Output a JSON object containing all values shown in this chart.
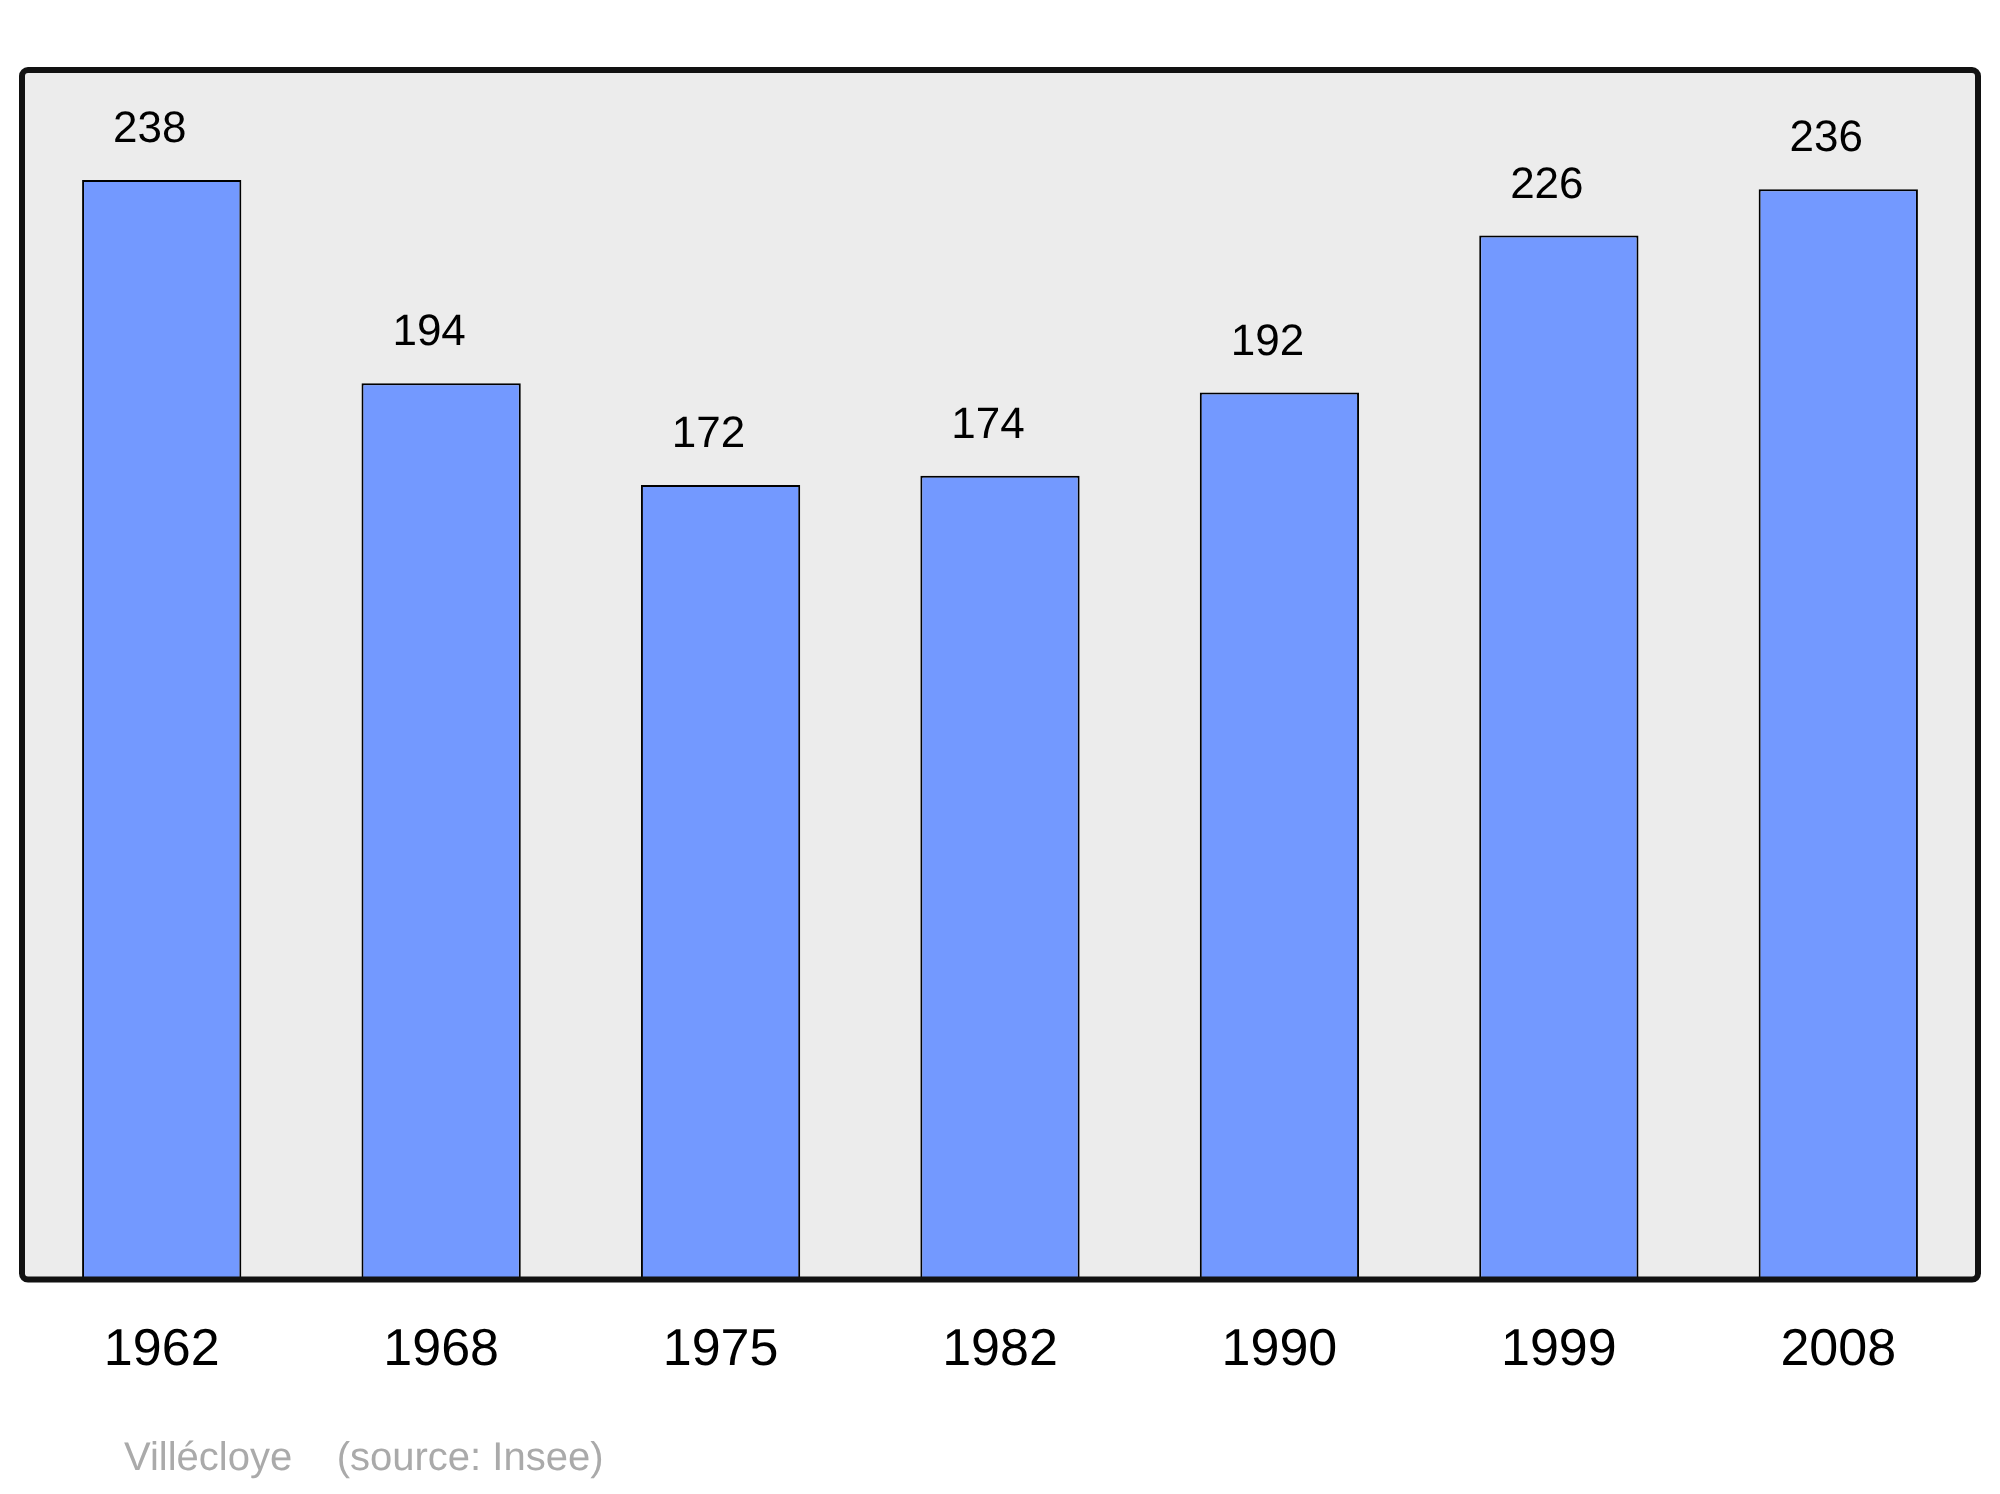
{
  "chart_data": {
    "type": "bar",
    "categories": [
      "1962",
      "1968",
      "1975",
      "1982",
      "1990",
      "1999",
      "2008"
    ],
    "values": [
      238,
      194,
      172,
      174,
      192,
      226,
      236
    ],
    "color": "#7399ff",
    "data_labels": true,
    "grid": false,
    "legend": false,
    "annotations": [
      "Villécloye    (source: Insee)"
    ]
  }
}
